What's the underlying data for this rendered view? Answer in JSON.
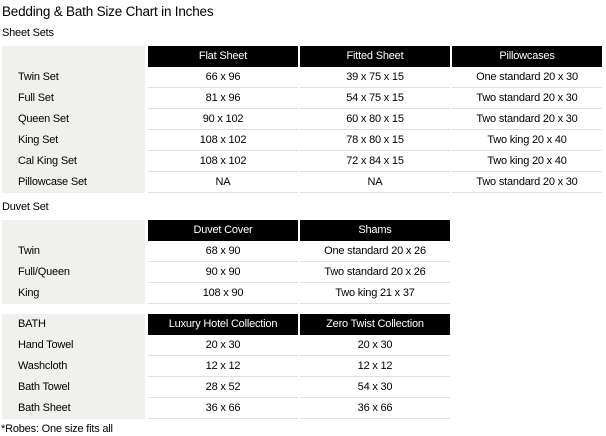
{
  "title": "Bedding & Bath Size Chart in Inches",
  "footnote": "*Robes: One size fits all",
  "colors": {
    "header_bg": "#010101",
    "header_text": "#ffffff",
    "label_column_bg": "#f0f0ee",
    "row_border": "#e0e0e0",
    "text": "#000000"
  },
  "sections": [
    {
      "label": "Sheet Sets",
      "corner_label": "",
      "columns": [
        "Flat Sheet",
        "Fitted Sheet",
        "Pillowcases"
      ],
      "rows": [
        {
          "label": "Twin Set",
          "values": [
            "66 x 96",
            "39 x 75 x 15",
            "One standard 20 x 30"
          ]
        },
        {
          "label": "Full Set",
          "values": [
            "81 x 96",
            "54 x 75 x 15",
            "Two standard 20 x 30"
          ]
        },
        {
          "label": "Queen Set",
          "values": [
            "90 x 102",
            "60 x 80 x 15",
            "Two standard 20 x 30"
          ]
        },
        {
          "label": "King Set",
          "values": [
            "108 x 102",
            "78 x 80 x 15",
            "Two king 20 x 40"
          ]
        },
        {
          "label": "Cal King Set",
          "values": [
            "108 x 102",
            "72 x 84 x 15",
            "Two king 20 x 40"
          ]
        },
        {
          "label": "Pillowcase Set",
          "values": [
            "NA",
            "NA",
            "Two standard 20 x 30"
          ]
        }
      ]
    },
    {
      "label": "Duvet Set",
      "corner_label": "",
      "columns": [
        "Duvet Cover",
        "Shams"
      ],
      "rows": [
        {
          "label": "Twin",
          "values": [
            "68 x 90",
            "One standard 20 x 26"
          ]
        },
        {
          "label": "Full/Queen",
          "values": [
            "90 x 90",
            "Two standard 20 x 26"
          ]
        },
        {
          "label": "King",
          "values": [
            "108 x 90",
            "Two king 21 x 37"
          ]
        }
      ]
    },
    {
      "label": "",
      "corner_label": "BATH",
      "columns": [
        "Luxury Hotel Collection",
        "Zero Twist Collection"
      ],
      "rows": [
        {
          "label": "Hand Towel",
          "values": [
            "20 x 30",
            "20 x 30"
          ]
        },
        {
          "label": "Washcloth",
          "values": [
            "12 x 12",
            "12 x 12"
          ]
        },
        {
          "label": "Bath Towel",
          "values": [
            "28 x 52",
            "54 x 30"
          ]
        },
        {
          "label": "Bath Sheet",
          "values": [
            "36 x 66",
            "36 x 66"
          ]
        }
      ]
    }
  ]
}
